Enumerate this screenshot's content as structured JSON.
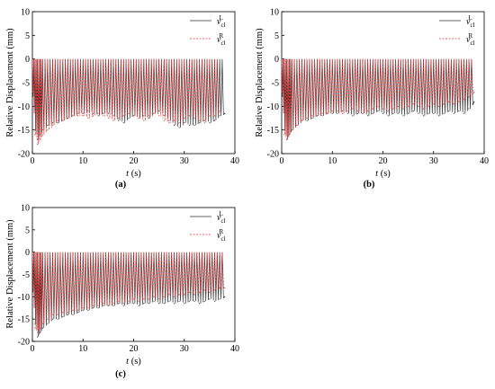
{
  "chart_data": [
    {
      "type": "line",
      "panel_label": "(a)",
      "ylabel": "Relative Displacement (mm)",
      "xlabel_symbol": "t",
      "xlabel_unit": " (s)",
      "xlim": [
        0,
        40
      ],
      "ylim": [
        -20,
        10
      ],
      "xticks": [
        0,
        10,
        20,
        30,
        40
      ],
      "yticks": [
        -20,
        -15,
        -10,
        -5,
        0,
        5,
        10
      ],
      "legend_position": "top-right",
      "series": [
        {
          "name": "v_cl^L",
          "legend_base": "v",
          "legend_sup": "L",
          "legend_sub": "cl",
          "color": "#333333",
          "style": "solid",
          "x": [
            0,
            0.5,
            1,
            1.5,
            2,
            3,
            4,
            5,
            6,
            7,
            8,
            9,
            10,
            11,
            12,
            13,
            14,
            15,
            16,
            17,
            18,
            19,
            20,
            21,
            22,
            23,
            24,
            25,
            26,
            27,
            28,
            29,
            30,
            31,
            32,
            33,
            34,
            35,
            36,
            37,
            38
          ],
          "y": [
            -8,
            -15,
            -17,
            -16,
            -15,
            -14,
            -13.5,
            -13.5,
            -13,
            -12.5,
            -12,
            -11.5,
            -11.5,
            -11,
            -11.5,
            -12,
            -11.5,
            -11.5,
            -12,
            -13,
            -13.5,
            -12.5,
            -12,
            -12.5,
            -12,
            -12.5,
            -11.5,
            -11,
            -12,
            -13,
            -14,
            -14.5,
            -13.5,
            -14,
            -14,
            -13.5,
            -13,
            -13.5,
            -13,
            -12,
            -11.5
          ]
        },
        {
          "name": "v_cl^R",
          "legend_base": "v",
          "legend_sup": "R",
          "legend_sub": "cl",
          "color": "#e03030",
          "style": "dashed",
          "x": [
            0,
            0.5,
            1,
            1.5,
            2,
            3,
            4,
            5,
            6,
            7,
            8,
            9,
            10,
            11,
            12,
            13,
            14,
            15,
            16,
            17,
            18,
            19,
            20,
            21,
            22,
            23,
            24,
            25,
            26,
            27,
            28,
            29,
            30,
            31,
            32,
            33,
            34,
            35,
            36,
            37
          ],
          "y": [
            -7,
            -16,
            -18,
            -17,
            -16,
            -15,
            -14,
            -13,
            -13,
            -12.5,
            -12,
            -12,
            -12,
            -12.5,
            -12,
            -11.5,
            -12,
            -12.5,
            -13,
            -12.5,
            -12,
            -11.5,
            -12,
            -12.5,
            -13,
            -12,
            -11.5,
            -12,
            -13,
            -13.5,
            -13,
            -13.5,
            -12.5,
            -12,
            -12.5,
            -13,
            -13.5,
            -12,
            -12,
            -11
          ]
        }
      ]
    },
    {
      "type": "line",
      "panel_label": "(b)",
      "ylabel": "Relative Displacement (mm)",
      "xlabel_symbol": "t",
      "xlabel_unit": " (s)",
      "xlim": [
        0,
        40
      ],
      "ylim": [
        -20,
        10
      ],
      "xticks": [
        0,
        10,
        20,
        30,
        40
      ],
      "yticks": [
        -20,
        -15,
        -10,
        -5,
        0,
        5,
        10
      ],
      "legend_position": "top-right",
      "series": [
        {
          "name": "v_cl^L",
          "legend_base": "v",
          "legend_sup": "L",
          "legend_sub": "cl",
          "color": "#333333",
          "style": "solid",
          "x": [
            0,
            0.5,
            1,
            1.5,
            2,
            3,
            4,
            5,
            6,
            7,
            8,
            9,
            10,
            11,
            12,
            13,
            14,
            15,
            16,
            17,
            18,
            19,
            20,
            21,
            22,
            23,
            24,
            25,
            26,
            27,
            28,
            29,
            30,
            31,
            32,
            33,
            34,
            35,
            36,
            37,
            38
          ],
          "y": [
            -8,
            -15,
            -17,
            -16,
            -15,
            -14,
            -13,
            -13,
            -12.5,
            -12,
            -12,
            -11.5,
            -11.5,
            -11.5,
            -11,
            -11.5,
            -12,
            -11.5,
            -11.5,
            -12,
            -11.5,
            -11,
            -11.5,
            -12,
            -11.5,
            -11.5,
            -12,
            -11.5,
            -11,
            -11.5,
            -12,
            -11.5,
            -11.5,
            -12,
            -11.5,
            -11,
            -11.5,
            -11,
            -11.5,
            -10.5,
            -9
          ]
        },
        {
          "name": "v_cl^R",
          "legend_base": "v",
          "legend_sup": "R",
          "legend_sub": "cl",
          "color": "#e03030",
          "style": "dashed",
          "x": [
            0,
            0.5,
            1,
            1.5,
            2,
            3,
            4,
            5,
            6,
            7,
            8,
            9,
            10,
            11,
            12,
            13,
            14,
            15,
            16,
            17,
            18,
            19,
            20,
            21,
            22,
            23,
            24,
            25,
            26,
            27,
            28,
            29,
            30,
            31,
            32,
            33,
            34,
            35,
            36,
            37,
            38
          ],
          "y": [
            -7,
            -16,
            -17,
            -16,
            -15,
            -14,
            -13,
            -12.5,
            -12,
            -12,
            -11.5,
            -11.5,
            -11,
            -11,
            -11.5,
            -11,
            -10.5,
            -11,
            -11.5,
            -11,
            -10.5,
            -10,
            -10.5,
            -11,
            -10.5,
            -10,
            -10.5,
            -10,
            -9.5,
            -10,
            -10.5,
            -10,
            -9.5,
            -10,
            -9.5,
            -9,
            -9.5,
            -9,
            -8.5,
            -8,
            -7
          ]
        }
      ]
    },
    {
      "type": "line",
      "panel_label": "(c)",
      "ylabel": "Relative Displacement (mm)",
      "xlabel_symbol": "t",
      "xlabel_unit": " (s)",
      "xlim": [
        0,
        40
      ],
      "ylim": [
        -20,
        10
      ],
      "xticks": [
        0,
        10,
        20,
        30,
        40
      ],
      "yticks": [
        -20,
        -15,
        -10,
        -5,
        0,
        5,
        10
      ],
      "legend_position": "top-right",
      "series": [
        {
          "name": "v_cl^L",
          "legend_base": "v",
          "legend_sup": "L",
          "legend_sub": "cl",
          "color": "#333333",
          "style": "solid",
          "x": [
            0,
            0.5,
            1,
            1.5,
            2,
            3,
            4,
            5,
            6,
            7,
            8,
            9,
            10,
            11,
            12,
            13,
            14,
            15,
            16,
            17,
            18,
            19,
            20,
            21,
            22,
            23,
            24,
            25,
            26,
            27,
            28,
            29,
            30,
            31,
            32,
            33,
            34,
            35,
            36,
            37,
            38
          ],
          "y": [
            -9,
            -16,
            -19,
            -18,
            -17,
            -16,
            -15,
            -15,
            -14.5,
            -14,
            -14,
            -13.5,
            -13,
            -13,
            -12.5,
            -12.5,
            -12,
            -12,
            -12,
            -11.5,
            -12,
            -11.5,
            -11.5,
            -12,
            -11.5,
            -11.5,
            -11,
            -11.5,
            -11.5,
            -11,
            -11.5,
            -11,
            -11.5,
            -11,
            -11,
            -11.5,
            -11,
            -10.5,
            -11,
            -10.5,
            -10
          ]
        },
        {
          "name": "v_cl^R",
          "legend_base": "v",
          "legend_sup": "R",
          "legend_sub": "cl",
          "color": "#e03030",
          "style": "dashed",
          "x": [
            0,
            0.5,
            1,
            1.5,
            2,
            3,
            4,
            5,
            6,
            7,
            8,
            9,
            10,
            11,
            12,
            13,
            14,
            15,
            16,
            17,
            18,
            19,
            20,
            21,
            22,
            23,
            24,
            25,
            26,
            27,
            28,
            29,
            30,
            31,
            32,
            33,
            34,
            35,
            36,
            37,
            38
          ],
          "y": [
            -8,
            -17,
            -18,
            -17,
            -16,
            -15,
            -14,
            -14,
            -13.5,
            -13.5,
            -13,
            -13,
            -12.5,
            -12.5,
            -12,
            -12,
            -11.5,
            -12,
            -11.5,
            -11,
            -11.5,
            -11,
            -10.5,
            -11,
            -10.5,
            -10.5,
            -10,
            -10.5,
            -10,
            -9.5,
            -10,
            -9.5,
            -9.5,
            -9,
            -9.5,
            -9,
            -8.5,
            -9,
            -8.5,
            -8,
            -8
          ]
        }
      ]
    }
  ]
}
